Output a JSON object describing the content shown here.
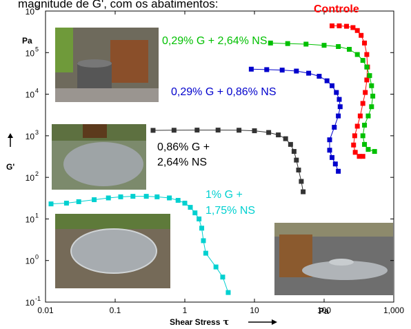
{
  "chart_data": {
    "type": "scatter",
    "title_partial": "magnitude de G', com os abatimentos:",
    "xlabel": "Shear Stress",
    "xlabel_symbol": "τ",
    "ylabel": "G'",
    "y_unit": "Pa",
    "x_unit": "Pa",
    "xscale": "log",
    "yscale": "log",
    "xlim": [
      0.01,
      1000
    ],
    "ylim": [
      0.1,
      1000000
    ],
    "x_tick_labels": [
      "0.01",
      "0.1",
      "1",
      "10",
      "100",
      "1,000"
    ],
    "y_tick_labels": [
      {
        "base": "10",
        "exp": "-1"
      },
      {
        "base": "10",
        "exp": "0"
      },
      {
        "base": "10",
        "exp": "1"
      },
      {
        "base": "10",
        "exp": "2"
      },
      {
        "base": "10",
        "exp": "3"
      },
      {
        "base": "10",
        "exp": "4"
      },
      {
        "base": "10",
        "exp": "5"
      },
      {
        "base": "10",
        "exp": "6"
      }
    ],
    "series": [
      {
        "name": "Controle",
        "color": "#ff0000",
        "points": [
          [
            130,
            440000
          ],
          [
            165,
            440000
          ],
          [
            210,
            430000
          ],
          [
            260,
            400000
          ],
          [
            300,
            340000
          ],
          [
            340,
            260000
          ],
          [
            380,
            170000
          ],
          [
            410,
            90000
          ],
          [
            420,
            45000
          ],
          [
            410,
            22000
          ],
          [
            390,
            11000
          ],
          [
            360,
            6000
          ],
          [
            330,
            3000
          ],
          [
            300,
            1700
          ],
          [
            275,
            1000
          ],
          [
            265,
            600
          ],
          [
            280,
            400
          ],
          [
            320,
            320
          ],
          [
            360,
            320
          ]
        ]
      },
      {
        "name": "0,29% G + 2,64% NS",
        "color": "#00c000",
        "points": [
          [
            17,
            170000
          ],
          [
            30,
            165000
          ],
          [
            55,
            160000
          ],
          [
            100,
            150000
          ],
          [
            160,
            140000
          ],
          [
            230,
            120000
          ],
          [
            300,
            90000
          ],
          [
            360,
            65000
          ],
          [
            410,
            45000
          ],
          [
            450,
            28000
          ],
          [
            480,
            16000
          ],
          [
            500,
            9000
          ],
          [
            480,
            5000
          ],
          [
            430,
            3000
          ],
          [
            380,
            1800
          ],
          [
            360,
            1000
          ],
          [
            380,
            620
          ],
          [
            430,
            470
          ],
          [
            530,
            420
          ]
        ]
      },
      {
        "name": "0,29% G + 0,86% NS",
        "color": "#0000cc",
        "points": [
          [
            9,
            40000
          ],
          [
            15,
            39000
          ],
          [
            25,
            38000
          ],
          [
            40,
            36000
          ],
          [
            60,
            32000
          ],
          [
            85,
            27000
          ],
          [
            110,
            21000
          ],
          [
            130,
            16000
          ],
          [
            150,
            11000
          ],
          [
            165,
            7500
          ],
          [
            170,
            5000
          ],
          [
            160,
            3000
          ],
          [
            140,
            1600
          ],
          [
            120,
            800
          ],
          [
            120,
            450
          ],
          [
            130,
            300
          ],
          [
            145,
            210
          ],
          [
            160,
            140
          ]
        ]
      },
      {
        "name": "0,86% G + 2,64% NS",
        "color": "#333333",
        "points": [
          [
            0.35,
            1350
          ],
          [
            0.7,
            1360
          ],
          [
            1.5,
            1370
          ],
          [
            3,
            1370
          ],
          [
            6,
            1360
          ],
          [
            10,
            1320
          ],
          [
            16,
            1200
          ],
          [
            22,
            1050
          ],
          [
            28,
            850
          ],
          [
            33,
            620
          ],
          [
            37,
            420
          ],
          [
            40,
            260
          ],
          [
            43,
            150
          ],
          [
            47,
            80
          ],
          [
            50,
            45
          ]
        ]
      },
      {
        "name": "1% G + 1,75% NS",
        "color": "#00d0d0",
        "points": [
          [
            0.012,
            23
          ],
          [
            0.02,
            24
          ],
          [
            0.03,
            26
          ],
          [
            0.05,
            29
          ],
          [
            0.08,
            32
          ],
          [
            0.12,
            34
          ],
          [
            0.18,
            35
          ],
          [
            0.28,
            35
          ],
          [
            0.4,
            34
          ],
          [
            0.6,
            32
          ],
          [
            0.8,
            28
          ],
          [
            1.0,
            24
          ],
          [
            1.2,
            19
          ],
          [
            1.4,
            14
          ],
          [
            1.6,
            10
          ],
          [
            1.75,
            6
          ],
          [
            1.85,
            3
          ],
          [
            2.0,
            1.5
          ],
          [
            2.8,
            0.7
          ],
          [
            3.5,
            0.4
          ],
          [
            4.2,
            0.17
          ]
        ]
      }
    ],
    "labels": [
      {
        "text": "Controle",
        "color": "#ff0000"
      },
      {
        "text": "0,29% G + 2,64% NS",
        "color": "#00c000"
      },
      {
        "text": "0,29% G + 0,86% NS",
        "color": "#0000cc"
      },
      {
        "text": "0,86% G +",
        "text2": "2,64% NS",
        "color": "#000000"
      },
      {
        "text": "1% G +",
        "text2": "1,75% NS",
        "color": "#00d0d0"
      }
    ]
  }
}
